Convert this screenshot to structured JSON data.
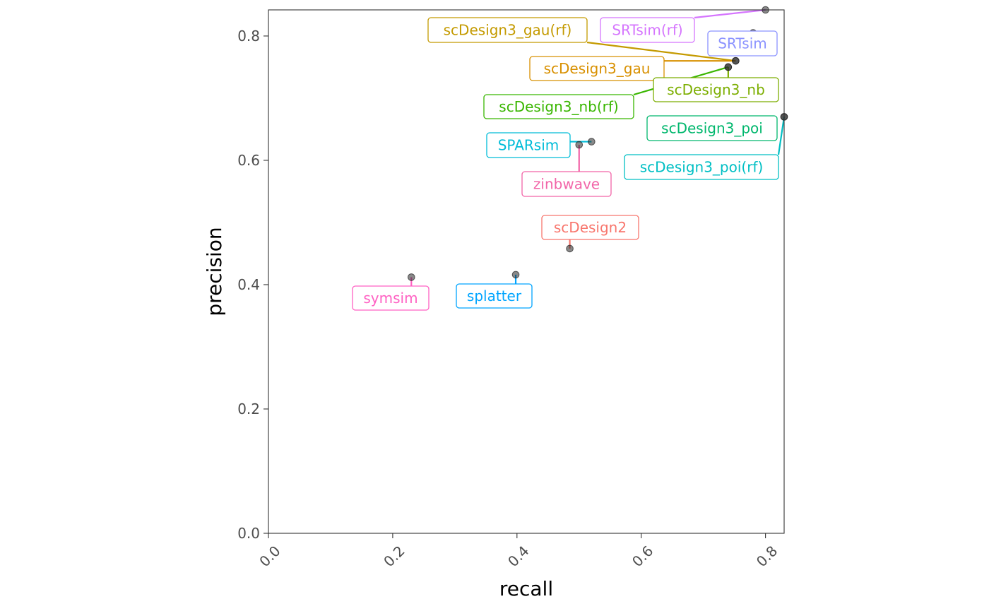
{
  "chart_data": {
    "type": "scatter",
    "xlabel": "recall",
    "ylabel": "precision",
    "xlim": [
      0,
      0.83
    ],
    "ylim": [
      0,
      0.842
    ],
    "x_ticks": [
      "0.0",
      "0.2",
      "0.4",
      "0.6",
      "0.8"
    ],
    "y_ticks": [
      "0.0",
      "0.2",
      "0.4",
      "0.6",
      "0.8"
    ],
    "grid": false,
    "legend": "none",
    "points": [
      {
        "name": "SRTsim(rf)",
        "x": 0.8,
        "y": 0.842,
        "color": "#D575FE"
      },
      {
        "name": "SRTsim",
        "x": 0.78,
        "y": 0.805,
        "color": "#8B93FF"
      },
      {
        "name": "scDesign3_gau(rf)",
        "x": 0.752,
        "y": 0.76,
        "color": "#C49A00"
      },
      {
        "name": "scDesign3_gau",
        "x": 0.752,
        "y": 0.76,
        "color": "#D89000"
      },
      {
        "name": "scDesign3_nb",
        "x": 0.74,
        "y": 0.75,
        "color": "#7CAE00"
      },
      {
        "name": "scDesign3_nb(rf)",
        "x": 0.74,
        "y": 0.75,
        "color": "#39B600"
      },
      {
        "name": "scDesign3_poi",
        "x": 0.83,
        "y": 0.67,
        "color": "#00B76D"
      },
      {
        "name": "scDesign3_poi(rf)",
        "x": 0.83,
        "y": 0.67,
        "color": "#00BFC4"
      },
      {
        "name": "SPARsim",
        "x": 0.52,
        "y": 0.63,
        "color": "#00BCD8"
      },
      {
        "name": "zinbwave",
        "x": 0.5,
        "y": 0.625,
        "color": "#F265A8"
      },
      {
        "name": "scDesign2",
        "x": 0.485,
        "y": 0.458,
        "color": "#F8766D"
      },
      {
        "name": "splatter",
        "x": 0.398,
        "y": 0.416,
        "color": "#00A5FF"
      },
      {
        "name": "symsim",
        "x": 0.23,
        "y": 0.412,
        "color": "#FF61C3"
      }
    ]
  }
}
